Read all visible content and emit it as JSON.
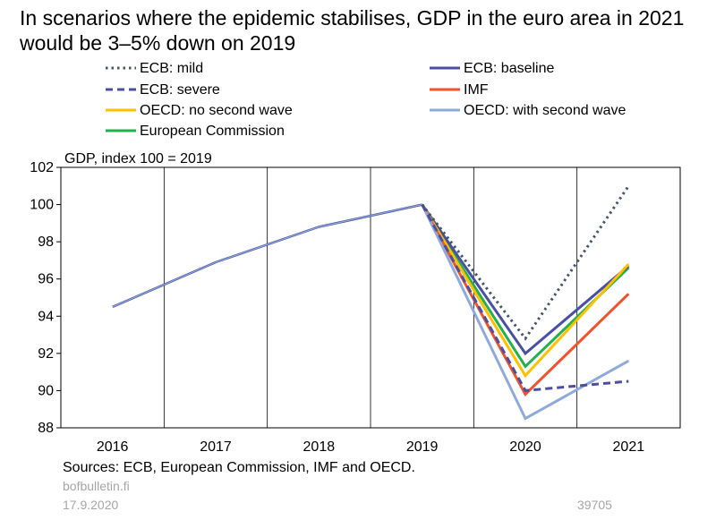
{
  "title": "In scenarios where the epidemic stabilises, GDP in the euro area in 2021 would be 3–5% down on 2019",
  "footer": {
    "sources": "Sources: ECB, European Commission, IMF and OECD.",
    "site": "bofbulletin.fi",
    "date": "17.9.2020",
    "code": "39705"
  },
  "chart_data": {
    "type": "line",
    "unit_label": "GDP, index 100 = 2019",
    "x": [
      "2016",
      "2017",
      "2018",
      "2019",
      "2020",
      "2021"
    ],
    "ylim": [
      88,
      102
    ],
    "yticks": [
      88,
      90,
      92,
      94,
      96,
      98,
      100,
      102
    ],
    "grid": "vertical",
    "legend": "top",
    "history": {
      "x": [
        "2016",
        "2017",
        "2018",
        "2019"
      ],
      "values": [
        94.5,
        96.9,
        98.8,
        100.0
      ]
    },
    "series": [
      {
        "name": "ECB: mild",
        "color": "#44546a",
        "style": "dotted",
        "x": [
          "2019",
          "2020",
          "2021"
        ],
        "values": [
          100.0,
          92.8,
          101.0
        ]
      },
      {
        "name": "ECB: baseline",
        "color": "#4a4fa0",
        "style": "solid",
        "x": [
          "2019",
          "2020",
          "2021"
        ],
        "values": [
          100.0,
          92.0,
          96.7
        ]
      },
      {
        "name": "ECB: severe",
        "color": "#4a4fa0",
        "style": "dashed",
        "x": [
          "2019",
          "2020",
          "2021"
        ],
        "values": [
          100.0,
          90.0,
          90.5
        ]
      },
      {
        "name": "IMF",
        "color": "#f4512c",
        "style": "solid",
        "x": [
          "2019",
          "2020",
          "2021"
        ],
        "values": [
          100.0,
          89.8,
          95.2
        ]
      },
      {
        "name": "OECD: no second wave",
        "color": "#ffc000",
        "style": "solid",
        "x": [
          "2019",
          "2020",
          "2021"
        ],
        "values": [
          100.0,
          90.8,
          96.8
        ]
      },
      {
        "name": "OECD: with second wave",
        "color": "#8ea9db",
        "style": "solid",
        "x": [
          "2019",
          "2020",
          "2021"
        ],
        "values": [
          100.0,
          88.5,
          91.6
        ]
      },
      {
        "name": "European Commission",
        "color": "#22b14c",
        "style": "solid",
        "x": [
          "2019",
          "2020",
          "2021"
        ],
        "values": [
          100.0,
          91.3,
          96.6
        ]
      }
    ]
  }
}
